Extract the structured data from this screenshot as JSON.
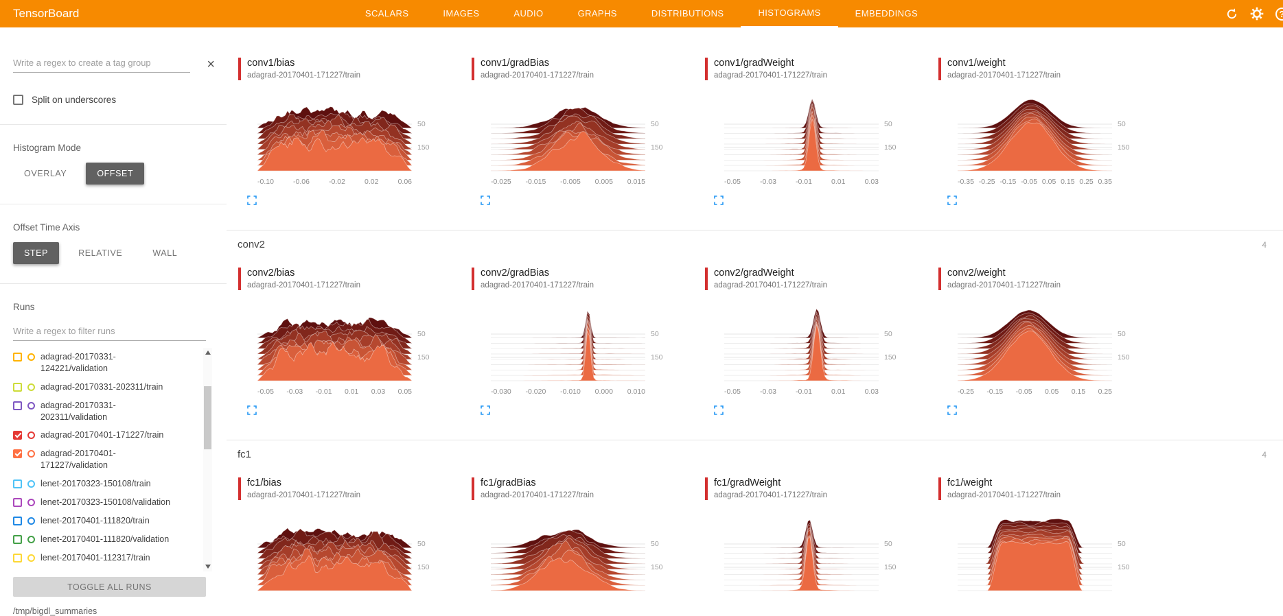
{
  "app": {
    "title": "TensorBoard"
  },
  "nav": {
    "tabs": [
      "SCALARS",
      "IMAGES",
      "AUDIO",
      "GRAPHS",
      "DISTRIBUTIONS",
      "HISTOGRAMS",
      "EMBEDDINGS"
    ],
    "active": "HISTOGRAMS"
  },
  "header_icons": {
    "help_glyph": "?"
  },
  "colors": {
    "header_bg": "#f78a00",
    "selected_run_red": "#d32f2f",
    "ridge_dark": "#5e100f",
    "ridge_bright": "#eb6a42",
    "expand_blue": "#2196f3"
  },
  "sidebar": {
    "tag_filter": {
      "placeholder": "Write a regex to create a tag group",
      "value": ""
    },
    "split_on_underscores": {
      "label": "Split on underscores",
      "checked": false
    },
    "histogram_mode": {
      "label": "Histogram Mode",
      "options": [
        "OVERLAY",
        "OFFSET"
      ],
      "selected": "OFFSET"
    },
    "offset_time_axis": {
      "label": "Offset Time Axis",
      "options": [
        "STEP",
        "RELATIVE",
        "WALL"
      ],
      "selected": "STEP"
    },
    "runs": {
      "label": "Runs",
      "filter": {
        "placeholder": "Write a regex to filter runs",
        "value": ""
      },
      "items": [
        {
          "label": "adagrad-20170331-124221/validation",
          "color": "#ffb300",
          "checked": false
        },
        {
          "label": "adagrad-20170331-202311/train",
          "color": "#cddc39",
          "checked": false
        },
        {
          "label": "adagrad-20170331-202311/validation",
          "color": "#7e57c2",
          "checked": false
        },
        {
          "label": "adagrad-20170401-171227/train",
          "color": "#e53935",
          "checked": true
        },
        {
          "label": "adagrad-20170401-171227/validation",
          "color": "#ff7043",
          "checked": true
        },
        {
          "label": "lenet-20170323-150108/train",
          "color": "#4fc3f7",
          "checked": false
        },
        {
          "label": "lenet-20170323-150108/validation",
          "color": "#ab47bc",
          "checked": false
        },
        {
          "label": "lenet-20170401-111820/train",
          "color": "#1e88e5",
          "checked": false
        },
        {
          "label": "lenet-20170401-111820/validation",
          "color": "#43a047",
          "checked": false
        },
        {
          "label": "lenet-20170401-112317/train",
          "color": "#fdd835",
          "checked": false
        }
      ],
      "toggle_all_label": "TOGGLE ALL RUNS",
      "log_dir": "/tmp/bigdl_summaries"
    }
  },
  "main": {
    "sections": [
      {
        "name": "",
        "count": "",
        "cards": [
          {
            "title": "conv1/bias",
            "run": "adagrad-20170401-171227/train",
            "shape": "noisy",
            "peak_x": 0.5,
            "x_ticks": [
              "-0.10",
              "-0.06",
              "-0.02",
              "0.02",
              "0.06"
            ],
            "y_ticks": [
              "50",
              "150"
            ]
          },
          {
            "title": "conv1/gradBias",
            "run": "adagrad-20170401-171227/train",
            "shape": "multipeak",
            "peak_x": 0.55,
            "x_ticks": [
              "-0.025",
              "-0.015",
              "-0.005",
              "0.005",
              "0.015"
            ],
            "y_ticks": [
              "50",
              "150"
            ]
          },
          {
            "title": "conv1/gradWeight",
            "run": "adagrad-20170401-171227/train",
            "shape": "spike",
            "peak_x": 0.57,
            "x_ticks": [
              "-0.05",
              "-0.03",
              "-0.01",
              "0.01",
              "0.03"
            ],
            "y_ticks": [
              "50",
              "150"
            ]
          },
          {
            "title": "conv1/weight",
            "run": "adagrad-20170401-171227/train",
            "shape": "bell",
            "peak_x": 0.48,
            "x_ticks": [
              "-0.35",
              "-0.25",
              "-0.15",
              "-0.05",
              "0.05",
              "0.15",
              "0.25",
              "0.35"
            ],
            "y_ticks": [
              "50",
              "150"
            ]
          }
        ]
      },
      {
        "name": "conv2",
        "count": "4",
        "cards": [
          {
            "title": "conv2/bias",
            "run": "adagrad-20170401-171227/train",
            "shape": "noisy",
            "peak_x": 0.5,
            "x_ticks": [
              "-0.05",
              "-0.03",
              "-0.01",
              "0.01",
              "0.03",
              "0.05"
            ],
            "y_ticks": [
              "50",
              "150"
            ]
          },
          {
            "title": "conv2/gradBias",
            "run": "adagrad-20170401-171227/train",
            "shape": "narrowspike",
            "peak_x": 0.63,
            "x_ticks": [
              "-0.030",
              "-0.020",
              "-0.010",
              "0.000",
              "0.010"
            ],
            "y_ticks": [
              "50",
              "150"
            ]
          },
          {
            "title": "conv2/gradWeight",
            "run": "adagrad-20170401-171227/train",
            "shape": "spike",
            "peak_x": 0.6,
            "x_ticks": [
              "-0.05",
              "-0.03",
              "-0.01",
              "0.01",
              "0.03"
            ],
            "y_ticks": [
              "50",
              "150"
            ]
          },
          {
            "title": "conv2/weight",
            "run": "adagrad-20170401-171227/train",
            "shape": "bell",
            "peak_x": 0.46,
            "x_ticks": [
              "-0.25",
              "-0.15",
              "-0.05",
              "0.05",
              "0.15",
              "0.25"
            ],
            "y_ticks": [
              "50",
              "150"
            ]
          }
        ]
      },
      {
        "name": "fc1",
        "count": "4",
        "cards": [
          {
            "title": "fc1/bias",
            "run": "adagrad-20170401-171227/train",
            "shape": "noisy",
            "peak_x": 0.5,
            "x_ticks": [],
            "y_ticks": [
              "50",
              "150"
            ]
          },
          {
            "title": "fc1/gradBias",
            "run": "adagrad-20170401-171227/train",
            "shape": "multipeak",
            "peak_x": 0.48,
            "x_ticks": [],
            "y_ticks": [
              "50",
              "150"
            ]
          },
          {
            "title": "fc1/gradWeight",
            "run": "adagrad-20170401-171227/train",
            "shape": "spike",
            "peak_x": 0.55,
            "x_ticks": [],
            "y_ticks": [
              "50",
              "150"
            ]
          },
          {
            "title": "fc1/weight",
            "run": "adagrad-20170401-171227/train",
            "shape": "plateau",
            "peak_x": 0.5,
            "x_ticks": [],
            "y_ticks": [
              "50",
              "150"
            ]
          }
        ]
      }
    ]
  }
}
